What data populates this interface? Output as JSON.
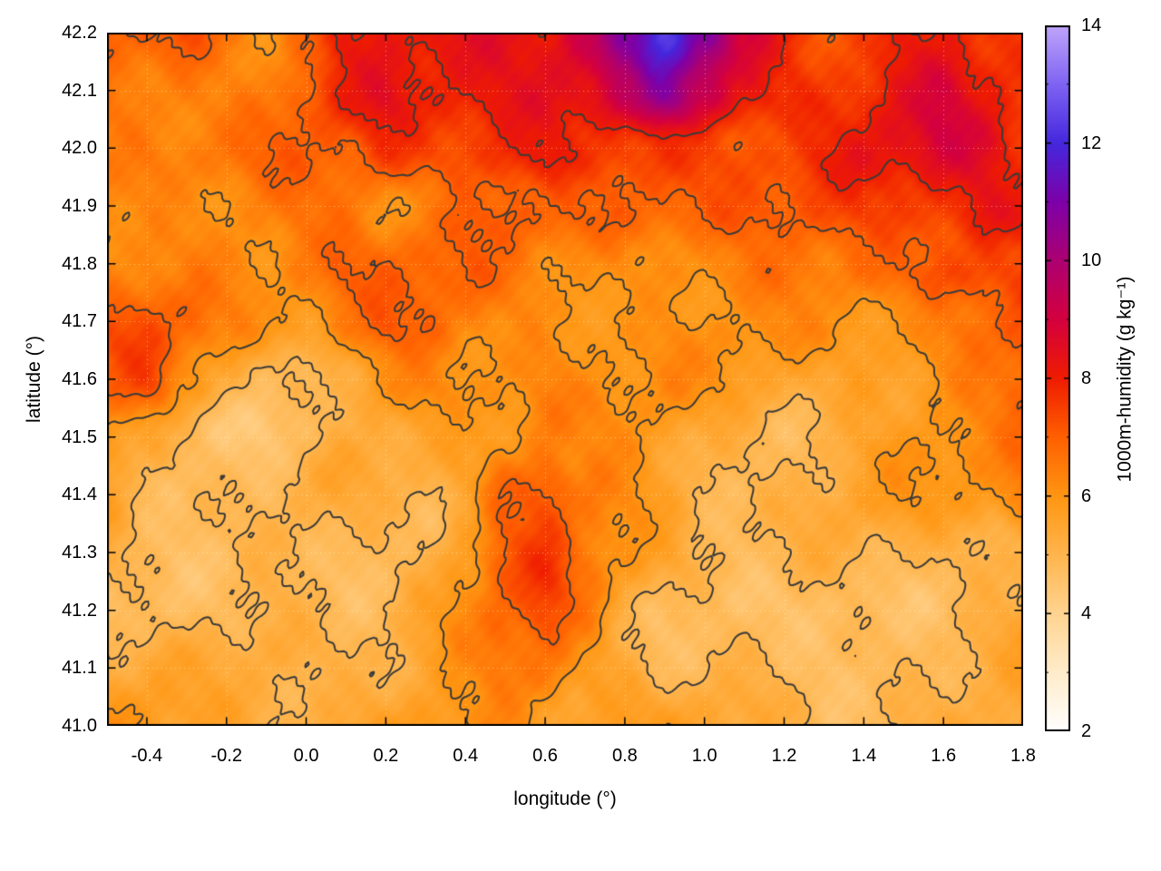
{
  "chart_data": {
    "type": "heatmap",
    "title": "",
    "xlabel": "longitude (°)",
    "ylabel": "latitude (°)",
    "colorbar_label": "1000m-humidity (g kg⁻¹)",
    "xlim": [
      -0.5,
      1.8
    ],
    "ylim": [
      41.0,
      42.2
    ],
    "clim": [
      2,
      14
    ],
    "grid_on": true,
    "contour_levels": [
      5,
      6,
      7,
      8
    ],
    "contour_color": "#3a3a3a",
    "x_ticks": {
      "values": [
        -0.4,
        -0.2,
        0.0,
        0.2,
        0.4,
        0.6,
        0.8,
        1.0,
        1.2,
        1.4,
        1.6,
        1.8
      ],
      "labels": [
        "-0.4",
        "-0.2",
        "0.0",
        "0.2",
        "0.4",
        "0.6",
        "0.8",
        "1.0",
        "1.2",
        "1.4",
        "1.6",
        "1.8"
      ]
    },
    "y_ticks": {
      "values": [
        41.0,
        41.1,
        41.2,
        41.3,
        41.4,
        41.5,
        41.6,
        41.7,
        41.8,
        41.9,
        42.0,
        42.1,
        42.2
      ],
      "labels": [
        "41.0",
        "41.1",
        "41.2",
        "41.3",
        "41.4",
        "41.5",
        "41.6",
        "41.7",
        "41.8",
        "41.9",
        "42.0",
        "42.1",
        "42.2"
      ]
    },
    "colorbar_ticks": {
      "values": [
        2,
        4,
        6,
        8,
        10,
        12,
        14
      ],
      "labels": [
        "2",
        "4",
        "6",
        "8",
        "10",
        "12",
        "14"
      ],
      "minor": [
        3,
        5,
        7,
        9,
        11,
        13
      ]
    },
    "palette": [
      {
        "value": 2,
        "color": "#ffffff"
      },
      {
        "value": 3,
        "color": "#ffeccb"
      },
      {
        "value": 4,
        "color": "#ffd491"
      },
      {
        "value": 5,
        "color": "#ffb54d"
      },
      {
        "value": 6,
        "color": "#ff9612"
      },
      {
        "value": 7,
        "color": "#ff6000"
      },
      {
        "value": 8,
        "color": "#ef1c00"
      },
      {
        "value": 9,
        "color": "#d4003e"
      },
      {
        "value": 10,
        "color": "#ad0071"
      },
      {
        "value": 11,
        "color": "#7d00a8"
      },
      {
        "value": 12,
        "color": "#4527dd"
      },
      {
        "value": 13,
        "color": "#7e63f2"
      },
      {
        "value": 14,
        "color": "#bfa4fa"
      }
    ],
    "field": {
      "note": "approximate 1000m-humidity (g/kg) sampled on a 0.1-degree grid; rows ordered south (41.0) to north (42.2)",
      "lon": [
        -0.5,
        -0.4,
        -0.3,
        -0.2,
        -0.1,
        0.0,
        0.1,
        0.2,
        0.3,
        0.4,
        0.5,
        0.6,
        0.7,
        0.8,
        0.9,
        1.0,
        1.1,
        1.2,
        1.3,
        1.4,
        1.5,
        1.6,
        1.7,
        1.8
      ],
      "lat": [
        41.0,
        41.1,
        41.2,
        41.3,
        41.4,
        41.5,
        41.6,
        41.7,
        41.8,
        41.9,
        42.0,
        42.1,
        42.2
      ],
      "values": [
        [
          5.8,
          5.6,
          5.5,
          5.5,
          5.6,
          5.6,
          5.5,
          5.6,
          5.8,
          6.0,
          6.2,
          6.0,
          5.8,
          5.6,
          5.4,
          5.2,
          5.1,
          5.0,
          5.0,
          5.1,
          5.2,
          5.3,
          5.3,
          5.4
        ],
        [
          5.4,
          5.2,
          5.0,
          5.1,
          5.3,
          5.2,
          5.1,
          5.2,
          5.5,
          5.8,
          6.6,
          6.9,
          6.2,
          5.6,
          5.1,
          4.9,
          4.7,
          4.6,
          4.6,
          4.8,
          4.9,
          5.0,
          5.1,
          5.2
        ],
        [
          5.1,
          4.9,
          4.7,
          4.8,
          5.0,
          5.0,
          5.0,
          5.1,
          5.4,
          6.0,
          6.6,
          7.1,
          6.4,
          5.6,
          5.1,
          4.9,
          4.7,
          4.6,
          4.6,
          4.7,
          4.9,
          5.0,
          5.1,
          5.1
        ],
        [
          5.3,
          5.0,
          4.8,
          4.7,
          4.8,
          5.0,
          5.0,
          5.1,
          5.4,
          6.1,
          7.0,
          7.2,
          6.4,
          5.9,
          5.5,
          5.1,
          4.9,
          4.9,
          4.9,
          5.0,
          5.1,
          5.3,
          5.5,
          5.6
        ],
        [
          5.6,
          5.1,
          4.9,
          4.7,
          4.7,
          4.9,
          5.0,
          5.1,
          5.3,
          5.9,
          7.1,
          7.4,
          6.5,
          6.0,
          5.6,
          5.3,
          5.1,
          5.1,
          5.2,
          5.3,
          5.5,
          5.6,
          6.1,
          6.7
        ],
        [
          6.1,
          5.6,
          5.1,
          4.9,
          4.7,
          4.7,
          4.9,
          5.1,
          5.3,
          5.6,
          6.1,
          6.6,
          6.1,
          5.9,
          5.6,
          5.3,
          5.3,
          5.3,
          5.5,
          5.6,
          5.6,
          5.9,
          6.1,
          6.6
        ],
        [
          6.6,
          7.0,
          6.1,
          5.6,
          5.1,
          5.1,
          5.6,
          6.0,
          6.1,
          6.1,
          6.3,
          6.5,
          6.2,
          6.0,
          5.9,
          5.6,
          5.6,
          5.6,
          5.6,
          5.9,
          5.9,
          6.1,
          6.3,
          6.9
        ],
        [
          7.1,
          7.0,
          6.6,
          6.1,
          5.9,
          6.1,
          6.6,
          7.0,
          6.9,
          6.3,
          6.1,
          6.3,
          6.5,
          6.3,
          6.1,
          5.9,
          5.9,
          6.0,
          6.0,
          6.1,
          6.1,
          6.3,
          6.6,
          7.1
        ],
        [
          6.6,
          6.6,
          6.3,
          6.1,
          6.1,
          6.6,
          7.1,
          7.1,
          6.9,
          6.6,
          6.3,
          6.1,
          6.1,
          6.3,
          6.5,
          6.5,
          6.5,
          6.5,
          6.6,
          6.9,
          7.1,
          7.6,
          7.6,
          7.1
        ],
        [
          6.6,
          6.3,
          6.1,
          6.1,
          6.3,
          6.6,
          6.9,
          6.6,
          6.6,
          7.1,
          7.1,
          6.6,
          6.6,
          6.9,
          7.1,
          7.1,
          7.1,
          7.1,
          7.1,
          7.3,
          7.6,
          8.1,
          8.6,
          8.3
        ],
        [
          6.3,
          6.6,
          6.6,
          6.6,
          6.6,
          6.6,
          6.9,
          7.6,
          7.6,
          7.9,
          8.1,
          8.1,
          7.6,
          7.6,
          7.6,
          7.6,
          7.6,
          7.3,
          7.6,
          7.9,
          8.1,
          8.6,
          8.6,
          8.1
        ],
        [
          6.6,
          6.6,
          6.9,
          6.6,
          6.6,
          7.1,
          7.6,
          8.1,
          7.9,
          8.1,
          8.3,
          8.5,
          8.5,
          9.1,
          10.6,
          9.6,
          8.6,
          8.1,
          7.9,
          7.9,
          8.1,
          8.6,
          8.1,
          7.6
        ],
        [
          6.6,
          6.9,
          7.1,
          6.9,
          6.6,
          7.1,
          8.1,
          8.1,
          8.1,
          8.3,
          8.6,
          8.6,
          9.1,
          10.6,
          12.0,
          10.6,
          8.6,
          8.1,
          7.6,
          7.6,
          8.1,
          8.1,
          7.6,
          7.6
        ]
      ]
    }
  }
}
